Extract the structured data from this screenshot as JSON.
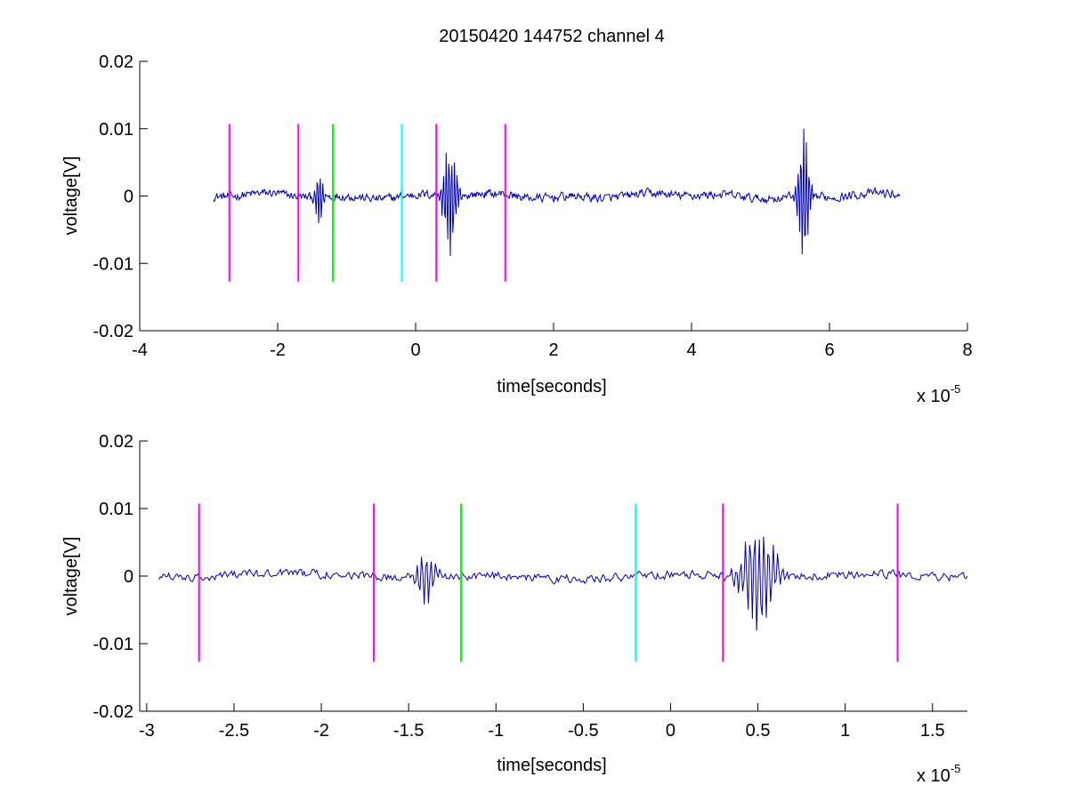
{
  "figure": {
    "title": "20150420 144752 channel 4"
  },
  "chart_data": [
    {
      "type": "line",
      "id": "top",
      "xlabel": "time[seconds]",
      "ylabel": "voltage[V]",
      "x_exponent_label": "x 10",
      "x_exponent": "-5",
      "xlim": [
        -4,
        8
      ],
      "ylim": [
        -0.02,
        0.02
      ],
      "xticks": [
        -4,
        -2,
        0,
        2,
        4,
        6,
        8
      ],
      "xtick_labels": [
        "-4",
        "-2",
        "0",
        "2",
        "4",
        "6",
        "8"
      ],
      "yticks": [
        0.02,
        0.01,
        0,
        -0.01,
        -0.02
      ],
      "ytick_labels": [
        "0.02",
        "0.01",
        "0",
        "-0.01",
        "-0.02"
      ],
      "grid": false,
      "markers": [
        {
          "x": -2.7,
          "color": "#ff00ff"
        },
        {
          "x": -1.7,
          "color": "#ff00ff"
        },
        {
          "x": -1.2,
          "color": "#00ff00"
        },
        {
          "x": -0.2,
          "color": "#00ffff"
        },
        {
          "x": 0.3,
          "color": "#ff00ff"
        },
        {
          "x": 1.3,
          "color": "#ff00ff"
        }
      ],
      "marker_range": [
        -0.0127,
        0.0107
      ],
      "signal": {
        "color": "#0000b4",
        "x_start": -2.93,
        "x_end": 7.02,
        "bursts": [
          {
            "center": -1.4,
            "width": 0.07,
            "amp": 0.0045
          },
          {
            "center": 0.5,
            "width": 0.12,
            "amp": 0.009
          },
          {
            "center": 5.62,
            "width": 0.1,
            "amp": 0.011
          }
        ]
      }
    },
    {
      "type": "line",
      "id": "bottom",
      "xlabel": "time[seconds]",
      "ylabel": "voltage[V]",
      "x_exponent_label": "x 10",
      "x_exponent": "-5",
      "xlim": [
        -3.04,
        1.7
      ],
      "ylim": [
        -0.02,
        0.02
      ],
      "xticks": [
        -3,
        -2.5,
        -2,
        -1.5,
        -1,
        -0.5,
        0,
        0.5,
        1,
        1.5
      ],
      "xtick_labels": [
        "-3",
        "-2.5",
        "-2",
        "-1.5",
        "-1",
        "-0.5",
        "0",
        "0.5",
        "1",
        "1.5"
      ],
      "yticks": [
        0.02,
        0.01,
        0,
        -0.01,
        -0.02
      ],
      "ytick_labels": [
        "0.02",
        "0.01",
        "0",
        "-0.01",
        "-0.02"
      ],
      "grid": false,
      "markers": [
        {
          "x": -2.7,
          "color": "#ff00ff"
        },
        {
          "x": -1.7,
          "color": "#ff00ff"
        },
        {
          "x": -1.2,
          "color": "#00ff00"
        },
        {
          "x": -0.2,
          "color": "#00ffff"
        },
        {
          "x": 0.3,
          "color": "#ff00ff"
        },
        {
          "x": 1.3,
          "color": "#ff00ff"
        }
      ],
      "marker_range": [
        -0.0127,
        0.0107
      ],
      "signal": {
        "color": "#0000b4",
        "x_start": -2.93,
        "x_end": 1.7,
        "bursts": [
          {
            "center": -1.4,
            "width": 0.07,
            "amp": 0.0045
          },
          {
            "center": 0.5,
            "width": 0.12,
            "amp": 0.009
          }
        ]
      }
    }
  ]
}
